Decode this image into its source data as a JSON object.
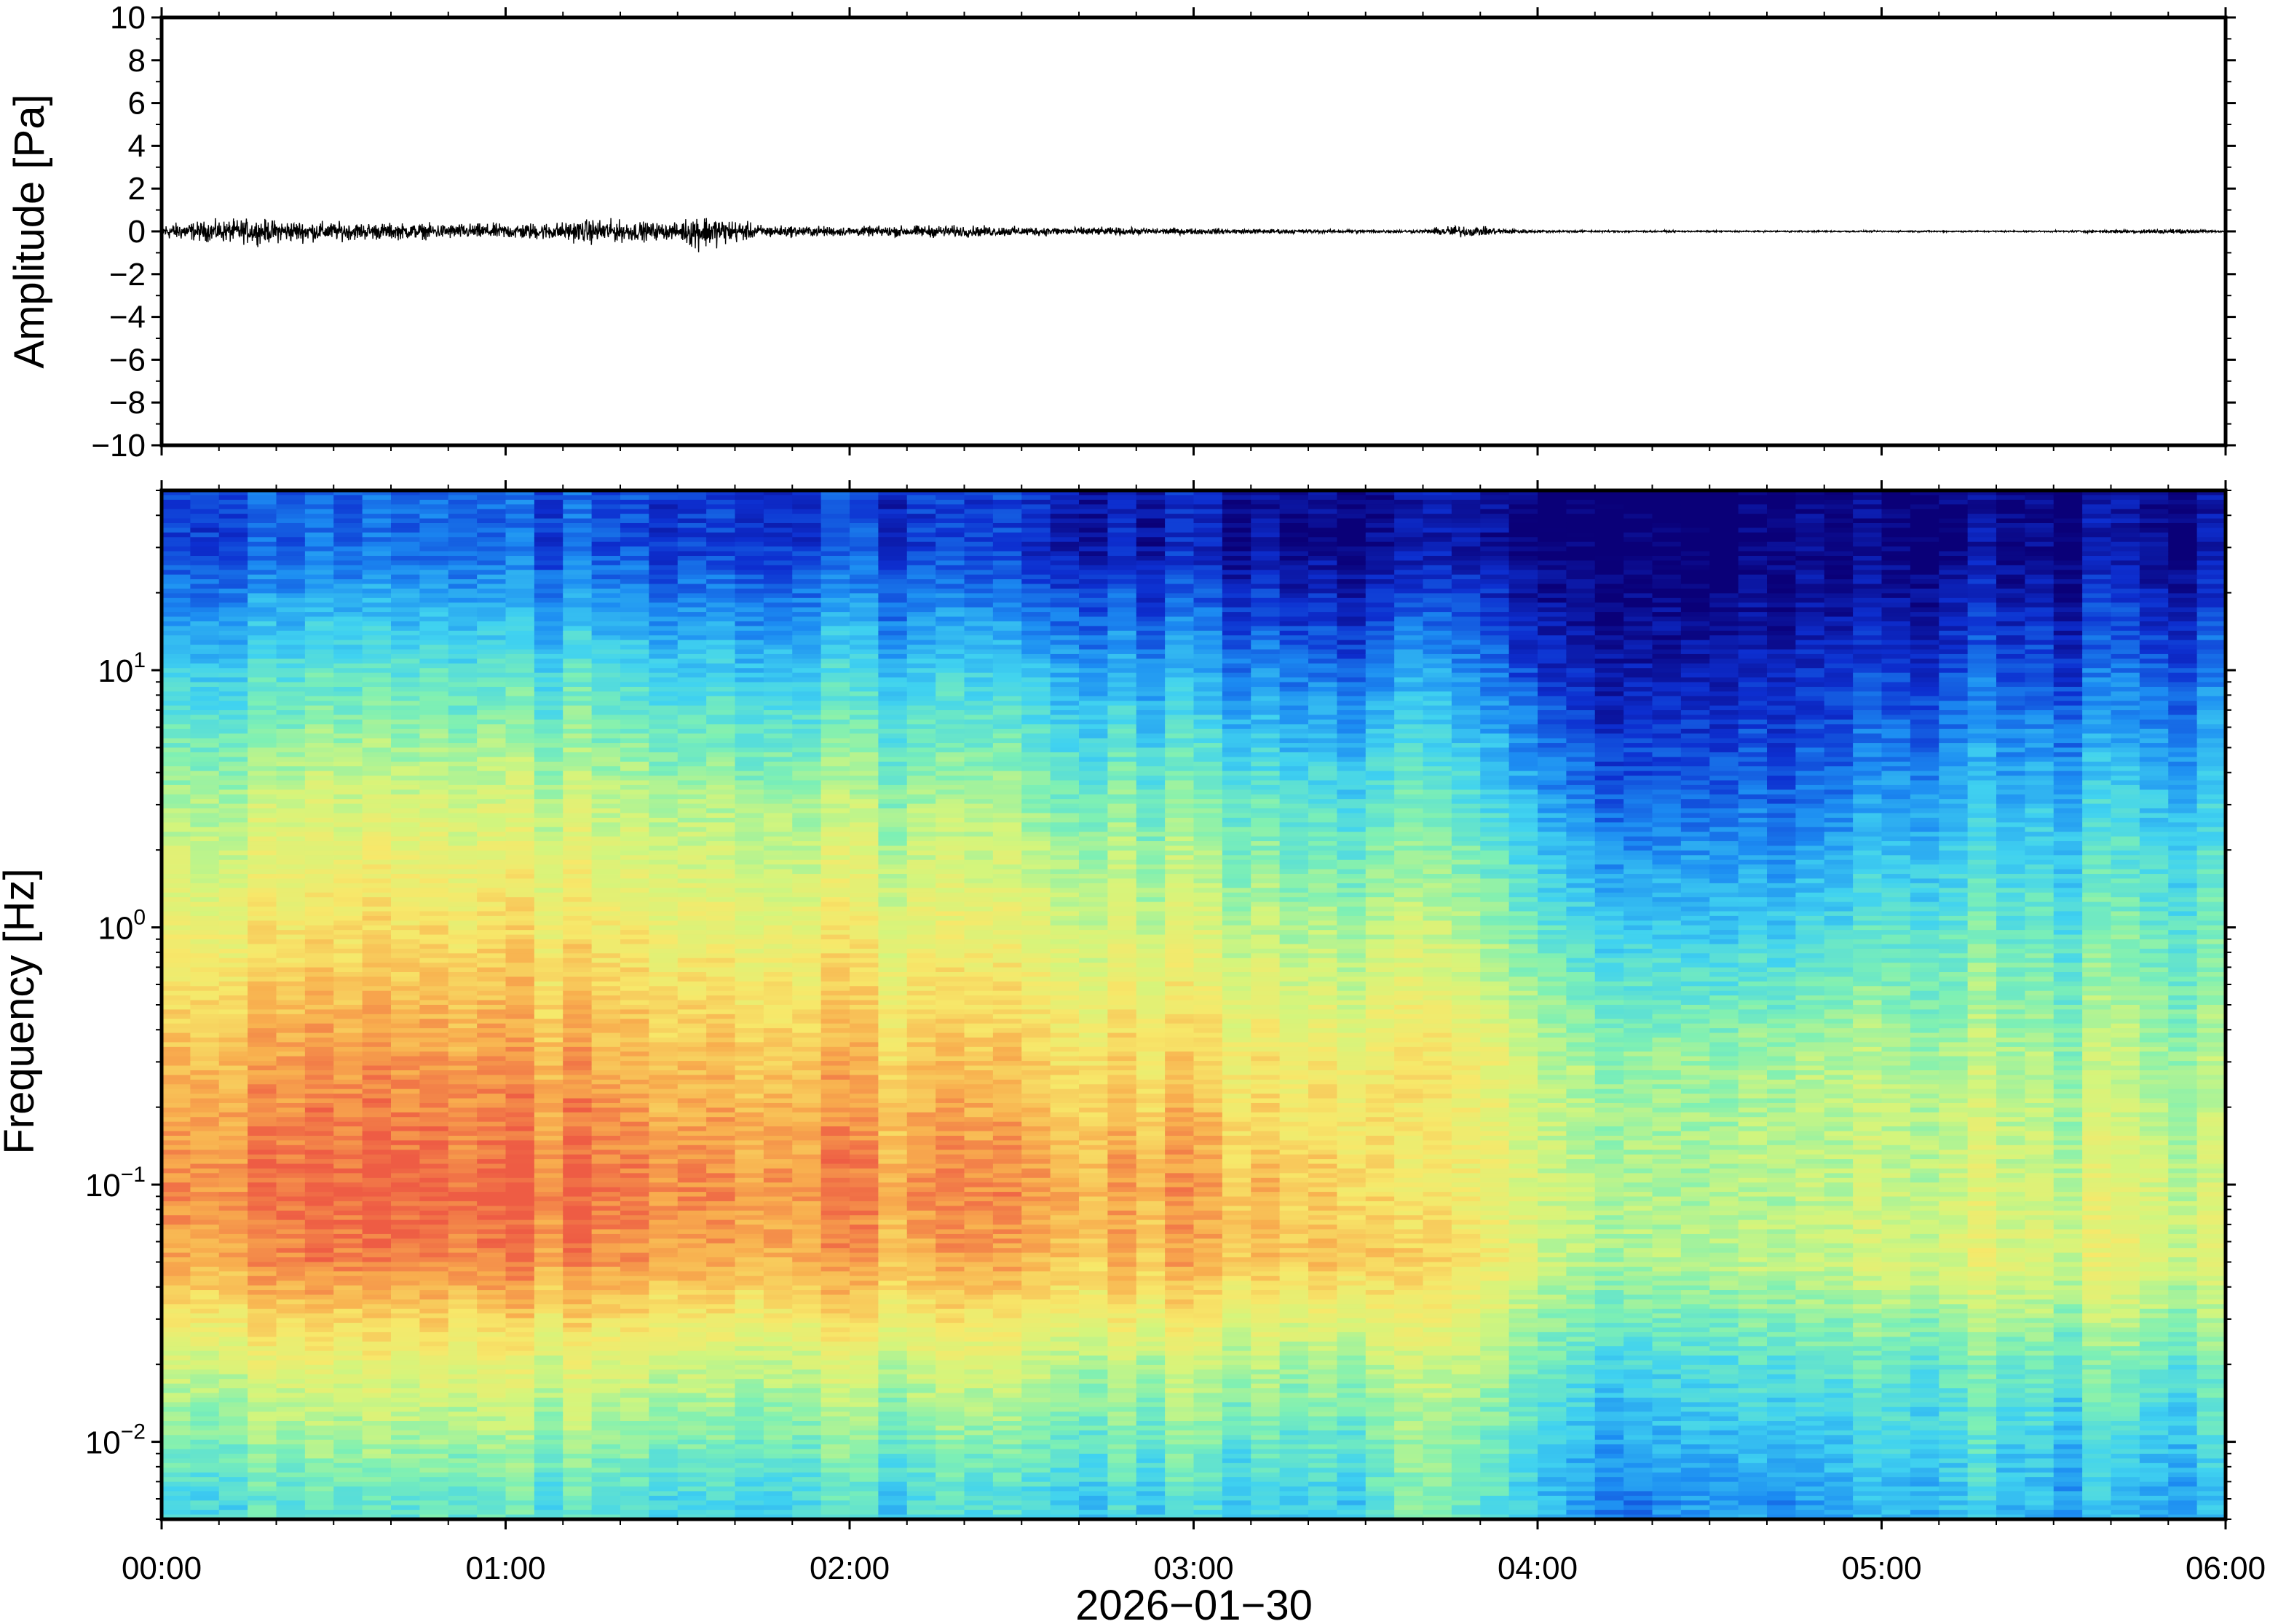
{
  "chart_data": [
    {
      "type": "line",
      "title": "",
      "xlabel": "",
      "ylabel": "Amplitude [Pa]",
      "ylim": [
        -10,
        10
      ],
      "yticks": [
        10,
        8,
        6,
        4,
        2,
        0,
        -2,
        -4,
        -6,
        -8,
        -10
      ],
      "ytick_labels": [
        "10",
        "8",
        "6",
        "4",
        "2",
        "0",
        "−2",
        "−4",
        "−6",
        "−8",
        "−10"
      ],
      "xlim": [
        "00:00",
        "06:00"
      ],
      "grid": false,
      "series": [
        {
          "x": [
            "00:00",
            "00:15",
            "00:30",
            "00:45",
            "01:00",
            "01:10",
            "01:15",
            "01:30",
            "01:33",
            "01:45",
            "02:00",
            "02:15",
            "02:30",
            "02:45",
            "03:00",
            "03:15",
            "03:30",
            "03:40",
            "03:45",
            "04:00",
            "04:30",
            "05:00",
            "05:30",
            "05:50",
            "06:00"
          ],
          "envelope": [
            0.5,
            0.8,
            0.6,
            0.5,
            0.5,
            0.6,
            0.8,
            0.5,
            1.2,
            0.4,
            0.3,
            0.4,
            0.3,
            0.25,
            0.2,
            0.15,
            0.1,
            0.1,
            0.4,
            0.08,
            0.05,
            0.05,
            0.05,
            0.15,
            0.05
          ]
        }
      ]
    },
    {
      "type": "heatmap",
      "title": "",
      "xlabel": "2026−01−30",
      "ylabel": "Frequency [Hz]",
      "yscale": "log",
      "ylim": [
        0.005,
        50
      ],
      "yticks": [
        0.01,
        0.1,
        1,
        10
      ],
      "ytick_labels": [
        {
          "base": "10",
          "exp": "−2"
        },
        {
          "base": "10",
          "exp": "−1"
        },
        {
          "base": "10",
          "exp": "0"
        },
        {
          "base": "10",
          "exp": "1"
        }
      ],
      "x_tick_labels": [
        "00:00",
        "01:00",
        "02:00",
        "03:00",
        "04:00",
        "05:00",
        "06:00"
      ],
      "colormap": [
        "#0a0078",
        "#0d2fd0",
        "#1c8cf2",
        "#40d2f0",
        "#7ef0b4",
        "#d4f57c",
        "#f7e86a",
        "#f8ae4e",
        "#ee5c44"
      ],
      "description_of_values": "relative power, index 0 (low) to 8 (high)",
      "x": [
        "00:00",
        "00:30",
        "01:00",
        "01:30",
        "02:00",
        "02:30",
        "03:00",
        "03:30",
        "03:36",
        "04:00",
        "04:15",
        "04:30",
        "04:45",
        "05:00",
        "05:15",
        "05:30",
        "05:45",
        "06:00"
      ],
      "y": [
        0.006,
        0.01,
        0.02,
        0.05,
        0.1,
        0.3,
        1,
        3,
        10,
        30
      ],
      "z": [
        [
          3.5,
          3.5,
          3.4,
          3.4,
          3.3,
          3.3,
          3.2,
          3.1,
          4.0,
          3.0,
          1.8,
          2.6,
          2.0,
          2.6,
          2.8,
          2.6,
          2.5,
          2.6
        ],
        [
          4.2,
          4.3,
          4.2,
          4.2,
          4.0,
          4.0,
          3.8,
          3.7,
          4.4,
          3.3,
          2.4,
          3.0,
          2.6,
          3.0,
          3.2,
          3.0,
          3.0,
          3.2
        ],
        [
          5.2,
          5.3,
          5.2,
          5.2,
          5.0,
          5.0,
          4.8,
          4.6,
          5.0,
          4.0,
          3.2,
          3.6,
          3.4,
          3.6,
          3.8,
          3.8,
          3.8,
          3.8
        ],
        [
          7.2,
          7.4,
          7.3,
          7.2,
          7.0,
          6.9,
          6.8,
          6.6,
          6.5,
          5.2,
          4.6,
          5.0,
          4.6,
          5.0,
          5.2,
          5.3,
          5.4,
          5.3
        ],
        [
          7.6,
          7.8,
          7.7,
          7.6,
          7.4,
          7.3,
          7.0,
          6.4,
          5.8,
          5.2,
          4.6,
          4.8,
          4.5,
          4.8,
          5.0,
          5.0,
          5.2,
          5.0
        ],
        [
          7.0,
          7.1,
          7.0,
          6.9,
          6.7,
          6.5,
          6.2,
          5.8,
          6.2,
          5.0,
          4.4,
          4.6,
          4.4,
          4.6,
          4.6,
          4.6,
          4.6,
          4.6
        ],
        [
          5.8,
          6.0,
          5.9,
          5.8,
          5.6,
          5.4,
          5.0,
          4.5,
          5.0,
          3.8,
          3.0,
          3.2,
          2.9,
          3.4,
          3.6,
          3.7,
          3.8,
          3.8
        ],
        [
          4.8,
          5.0,
          4.9,
          4.8,
          4.6,
          4.4,
          4.0,
          3.4,
          4.0,
          2.6,
          1.6,
          2.0,
          1.5,
          2.2,
          2.6,
          2.8,
          2.9,
          3.0
        ],
        [
          3.2,
          3.4,
          3.3,
          3.2,
          3.0,
          2.8,
          2.3,
          1.7,
          2.5,
          1.2,
          0.6,
          0.9,
          0.6,
          1.0,
          1.3,
          1.4,
          1.5,
          1.8
        ],
        [
          1.4,
          1.5,
          1.4,
          1.3,
          1.2,
          1.0,
          0.6,
          0.2,
          0.5,
          0.1,
          0.0,
          0.0,
          0.0,
          0.0,
          0.1,
          0.2,
          0.3,
          0.4
        ]
      ]
    }
  ]
}
